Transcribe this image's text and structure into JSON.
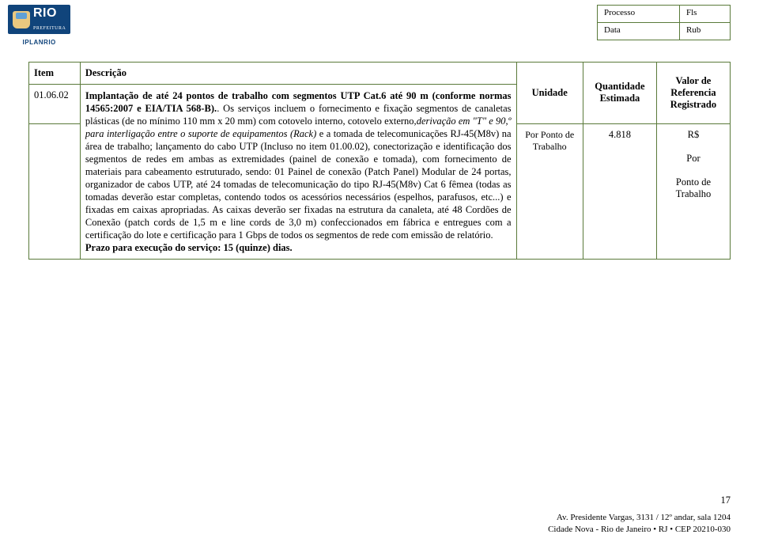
{
  "branding": {
    "city": "RIO",
    "prefeitura": "PREFEITURA",
    "agency": "IPLANRIO"
  },
  "header_box": {
    "rows": [
      {
        "label": "Processo",
        "value": "Fls"
      },
      {
        "label": "Data",
        "value": "Rub"
      }
    ]
  },
  "table": {
    "columns": {
      "item": "Item",
      "descricao": "Descrição",
      "unidade": "Unidade",
      "quantidade": "Quantidade Estimada",
      "valor": "Valor de Referencia Registrado"
    },
    "row": {
      "item_code": "01.06.02",
      "desc_bold_lead": "Implantação de até 24 pontos de trabalho com segmentos UTP Cat.6 até 90 m",
      "desc_bold_tail1": " (conforme normas 14565:2007 e EIA/TIA 568-B).",
      "desc_plain1": ". Os serviços incluem o fornecimento e fixação segmentos de canaletas plásticas (de no mínimo 110 mm x 20 mm) com cotovelo interno, cotovelo externo,",
      "desc_italic": "derivação em \"T\" e 90,º para interligação entre o suporte de equipamentos (Rack)",
      "desc_plain2": " e a tomada de telecomunicações RJ-45(M8v) na área de trabalho; lançamento do cabo UTP (Incluso no item 01.00.02), conectorização e identificação dos segmentos de redes em ambas as extremidades (painel de conexão e tomada), com fornecimento de materiais para cabeamento estruturado, sendo: 01 Painel de conexão (Patch Panel) Modular de 24 portas, organizador de cabos UTP, até 24 tomadas de telecomunicação do tipo RJ-45(M8v) Cat 6 fêmea (todas as tomadas deverão estar completas, contendo todos os acessórios necessários (espelhos, parafusos, etc...) e fixadas em caixas apropriadas. As caixas deverão ser fixadas na estrutura da canaleta, até 48 Cordões de Conexão (patch cords de 1,5 m e line cords de 3,0 m) confeccionados em fábrica e entregues com a certificação do lote e certificação para 1 Gbps de todos os segmentos de rede com emissão de relatório.",
      "desc_prazo": "Prazo para execução do serviço: 15 (quinze) dias.",
      "unidade": "Por Ponto de Trabalho",
      "quantidade": "4.818",
      "valor_line1": "R$",
      "valor_line2": "Por",
      "valor_line3": "Ponto de Trabalho"
    }
  },
  "footer": {
    "page": "17",
    "addr1": "Av. Presidente Vargas, 3131 / 12º andar, sala 1204",
    "addr2": "Cidade Nova - Rio de Janeiro • RJ • CEP 20210-030"
  },
  "colors": {
    "border": "#5a7a3a",
    "brand_blue": "#10447b"
  }
}
